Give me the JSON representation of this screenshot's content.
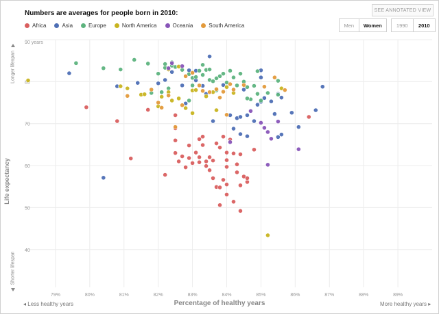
{
  "header": {
    "headline": "Numbers are averages for people born in 2010:",
    "annotated_button": "SEE ANNOTATED VIEW",
    "gender_options": [
      "Men",
      "Women"
    ],
    "gender_selected": "Women",
    "year_options": [
      "1990",
      "2010"
    ],
    "year_selected": "2010"
  },
  "legend": [
    {
      "name": "Africa",
      "color": "#d95f5f"
    },
    {
      "name": "Asia",
      "color": "#4e6fb5"
    },
    {
      "name": "Europe",
      "color": "#5db37e"
    },
    {
      "name": "North America",
      "color": "#c8b420"
    },
    {
      "name": "Oceania",
      "color": "#8855b8"
    },
    {
      "name": "South America",
      "color": "#e39a3b"
    }
  ],
  "footer": {
    "left": "◂ Less healthy years",
    "right": "More healthy years ▸"
  },
  "chart_data": {
    "type": "scatter",
    "title": "Numbers are averages for people born in 2010:",
    "xlabel": "Percentage of healthy years",
    "ylabel": "Life expectancy",
    "ylabel_top": "Longer lifespan",
    "ylabel_bottom": "Shorter lifespan",
    "xlim": [
      78.1,
      90.0
    ],
    "ylim": [
      31,
      90
    ],
    "x_ticks": [
      "79%",
      "80%",
      "81%",
      "82%",
      "83%",
      "84%",
      "85%",
      "86%",
      "87%",
      "88%",
      "89%"
    ],
    "x_tick_values": [
      79,
      80,
      81,
      82,
      83,
      84,
      85,
      86,
      87,
      88,
      89
    ],
    "y_ticks": [
      "90 years",
      "80",
      "70",
      "60",
      "50",
      "40"
    ],
    "y_tick_values": [
      90,
      80,
      70,
      60,
      50,
      40
    ],
    "grid": true,
    "series": [
      {
        "name": "Africa",
        "color": "#d95f5f",
        "points": [
          [
            79.9,
            73.9
          ],
          [
            80.8,
            70.6
          ],
          [
            81.2,
            61.7
          ],
          [
            81.7,
            73.3
          ],
          [
            82.2,
            57.8
          ],
          [
            82.5,
            72.0
          ],
          [
            82.5,
            68.9
          ],
          [
            82.5,
            66.0
          ],
          [
            82.5,
            63.0
          ],
          [
            82.6,
            61.0
          ],
          [
            82.7,
            62.2
          ],
          [
            82.8,
            59.6
          ],
          [
            82.9,
            61.8
          ],
          [
            83.0,
            60.6
          ],
          [
            82.9,
            64.8
          ],
          [
            83.1,
            63.1
          ],
          [
            83.2,
            66.3
          ],
          [
            83.2,
            62.0
          ],
          [
            83.2,
            60.8
          ],
          [
            83.3,
            64.9
          ],
          [
            83.3,
            66.9
          ],
          [
            83.4,
            61.0
          ],
          [
            83.4,
            59.9
          ],
          [
            83.5,
            58.9
          ],
          [
            83.5,
            62.0
          ],
          [
            83.6,
            61.2
          ],
          [
            83.6,
            57.0
          ],
          [
            83.7,
            54.9
          ],
          [
            83.8,
            54.8
          ],
          [
            83.7,
            65.3
          ],
          [
            83.8,
            64.3
          ],
          [
            83.9,
            66.9
          ],
          [
            84.0,
            63.1
          ],
          [
            84.0,
            61.3
          ],
          [
            84.0,
            59.7
          ],
          [
            83.9,
            56.6
          ],
          [
            84.3,
            58.4
          ],
          [
            84.4,
            55.3
          ],
          [
            84.5,
            57.4
          ],
          [
            84.2,
            62.9
          ],
          [
            84.4,
            62.7
          ],
          [
            84.0,
            55.5
          ],
          [
            84.6,
            56.1
          ],
          [
            84.0,
            53.1
          ],
          [
            84.2,
            51.4
          ],
          [
            84.3,
            60.3
          ],
          [
            84.8,
            63.8
          ],
          [
            84.4,
            49.2
          ],
          [
            83.8,
            50.6
          ],
          [
            84.1,
            66.2
          ],
          [
            86.4,
            71.6
          ],
          [
            84.6,
            57.0
          ]
        ]
      },
      {
        "name": "Asia",
        "color": "#4e6fb5",
        "points": [
          [
            79.4,
            82.0
          ],
          [
            80.4,
            57.1
          ],
          [
            80.8,
            78.9
          ],
          [
            81.4,
            79.7
          ],
          [
            82.0,
            79.6
          ],
          [
            82.2,
            80.4
          ],
          [
            82.4,
            82.3
          ],
          [
            82.7,
            79.1
          ],
          [
            82.9,
            82.7
          ],
          [
            83.1,
            82.6
          ],
          [
            83.3,
            79.0
          ],
          [
            83.5,
            86.0
          ],
          [
            83.6,
            70.6
          ],
          [
            83.9,
            79.2
          ],
          [
            84.1,
            72.0
          ],
          [
            84.2,
            68.8
          ],
          [
            84.3,
            71.3
          ],
          [
            84.4,
            71.6
          ],
          [
            84.4,
            67.5
          ],
          [
            84.6,
            67.0
          ],
          [
            84.6,
            72.0
          ],
          [
            84.8,
            70.6
          ],
          [
            84.9,
            74.5
          ],
          [
            85.0,
            75.2
          ],
          [
            85.0,
            81.0
          ],
          [
            85.1,
            76.1
          ],
          [
            85.3,
            75.3
          ],
          [
            85.4,
            72.3
          ],
          [
            85.5,
            66.8
          ],
          [
            85.5,
            77.1
          ],
          [
            85.6,
            67.4
          ],
          [
            85.9,
            72.6
          ],
          [
            86.1,
            69.2
          ],
          [
            86.6,
            73.2
          ],
          [
            86.8,
            78.8
          ],
          [
            85.0,
            82.7
          ],
          [
            85.6,
            76.2
          ],
          [
            82.8,
            74.8
          ],
          [
            83.1,
            80.3
          ],
          [
            83.4,
            77.1
          ],
          [
            84.5,
            78.1
          ]
        ]
      },
      {
        "name": "Europe",
        "color": "#5db37e",
        "points": [
          [
            79.6,
            84.4
          ],
          [
            80.4,
            83.2
          ],
          [
            80.9,
            82.9
          ],
          [
            81.3,
            85.2
          ],
          [
            81.7,
            84.3
          ],
          [
            82.0,
            81.9
          ],
          [
            82.2,
            83.3
          ],
          [
            82.2,
            84.2
          ],
          [
            82.4,
            83.8
          ],
          [
            82.5,
            83.5
          ],
          [
            82.7,
            82.8
          ],
          [
            82.9,
            81.8
          ],
          [
            83.0,
            80.9
          ],
          [
            83.1,
            81.1
          ],
          [
            83.2,
            82.6
          ],
          [
            83.3,
            81.6
          ],
          [
            83.4,
            82.8
          ],
          [
            83.5,
            80.4
          ],
          [
            83.6,
            80.1
          ],
          [
            83.7,
            80.8
          ],
          [
            83.8,
            81.3
          ],
          [
            83.9,
            81.9
          ],
          [
            84.0,
            79.8
          ],
          [
            84.1,
            82.6
          ],
          [
            84.2,
            81.0
          ],
          [
            84.3,
            79.1
          ],
          [
            84.4,
            81.9
          ],
          [
            84.5,
            80.0
          ],
          [
            84.6,
            78.7
          ],
          [
            84.7,
            75.8
          ],
          [
            84.8,
            79.0
          ],
          [
            84.9,
            77.1
          ],
          [
            85.0,
            75.5
          ],
          [
            85.2,
            77.3
          ],
          [
            85.5,
            76.9
          ],
          [
            83.3,
            84.0
          ],
          [
            83.0,
            79.1
          ],
          [
            82.4,
            84.6
          ],
          [
            82.3,
            78.4
          ],
          [
            82.1,
            77.5
          ],
          [
            83.7,
            77.9
          ],
          [
            85.5,
            80.2
          ],
          [
            84.9,
            82.5
          ],
          [
            83.5,
            82.9
          ],
          [
            84.6,
            76.0
          ],
          [
            81.8,
            77.3
          ],
          [
            82.9,
            75.5
          ]
        ]
      },
      {
        "name": "North America",
        "color": "#c8b420",
        "points": [
          [
            78.2,
            80.3
          ],
          [
            80.9,
            78.9
          ],
          [
            81.1,
            78.4
          ],
          [
            81.5,
            76.9
          ],
          [
            81.6,
            77.0
          ],
          [
            82.0,
            74.1
          ],
          [
            82.3,
            77.5
          ],
          [
            82.4,
            75.5
          ],
          [
            82.6,
            76.0
          ],
          [
            82.8,
            73.7
          ],
          [
            83.0,
            72.5
          ],
          [
            83.0,
            77.9
          ],
          [
            83.4,
            76.5
          ],
          [
            83.6,
            77.5
          ],
          [
            83.7,
            73.2
          ],
          [
            84.0,
            78.7
          ],
          [
            84.2,
            77.3
          ],
          [
            85.2,
            43.4
          ],
          [
            85.6,
            78.4
          ],
          [
            82.6,
            83.6
          ],
          [
            82.3,
            82.9
          ],
          [
            82.1,
            76.4
          ],
          [
            83.1,
            78.0
          ]
        ]
      },
      {
        "name": "Oceania",
        "color": "#8855b8",
        "points": [
          [
            82.3,
            83.2
          ],
          [
            82.7,
            83.7
          ],
          [
            84.1,
            65.6
          ],
          [
            84.7,
            73.0
          ],
          [
            85.0,
            70.2
          ],
          [
            85.1,
            69.0
          ],
          [
            85.2,
            68.0
          ],
          [
            85.3,
            66.4
          ],
          [
            85.2,
            60.2
          ],
          [
            86.1,
            63.9
          ],
          [
            85.5,
            70.5
          ],
          [
            82.4,
            84.4
          ]
        ]
      },
      {
        "name": "South America",
        "color": "#e39a3b",
        "points": [
          [
            81.1,
            76.6
          ],
          [
            81.8,
            78.1
          ],
          [
            82.0,
            75.0
          ],
          [
            82.1,
            73.8
          ],
          [
            82.3,
            76.7
          ],
          [
            82.5,
            69.2
          ],
          [
            82.7,
            74.4
          ],
          [
            82.8,
            81.3
          ],
          [
            83.0,
            82.1
          ],
          [
            83.2,
            79.1
          ],
          [
            83.3,
            77.8
          ],
          [
            83.5,
            77.5
          ],
          [
            83.7,
            78.2
          ],
          [
            83.8,
            76.2
          ],
          [
            83.9,
            77.6
          ],
          [
            84.1,
            79.4
          ],
          [
            84.2,
            78.1
          ],
          [
            84.5,
            79.2
          ],
          [
            85.1,
            78.8
          ],
          [
            85.4,
            81.0
          ],
          [
            85.7,
            78.0
          ],
          [
            84.0,
            72.1
          ]
        ]
      }
    ]
  }
}
